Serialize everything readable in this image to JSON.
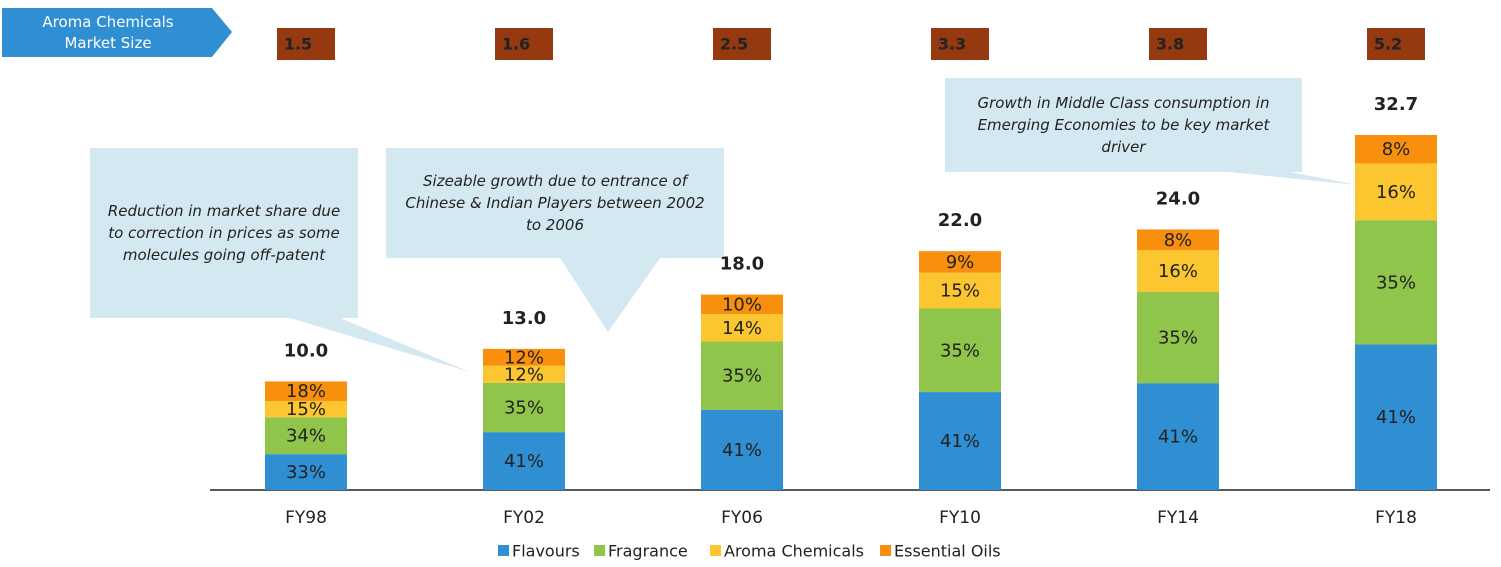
{
  "chart_data": {
    "type": "bar",
    "categories": [
      "FY98",
      "FY02",
      "FY06",
      "FY10",
      "FY14",
      "FY18"
    ],
    "totals": {
      "values": [
        10.0,
        13.0,
        18.0,
        22.0,
        24.0,
        32.7
      ],
      "value_labels": [
        "10.0",
        "13.0",
        "18.0",
        "22.0",
        "24.0",
        "32.7"
      ]
    },
    "series": [
      {
        "name": "Flavours",
        "color": "#2f8fd2",
        "values": [
          33,
          41,
          41,
          41,
          41,
          41
        ],
        "value_labels": [
          "33%",
          "41%",
          "41%",
          "41%",
          "41%",
          "41%"
        ]
      },
      {
        "name": "Fragrance",
        "color": "#8fc54a",
        "values": [
          34,
          35,
          35,
          35,
          35,
          35
        ],
        "value_labels": [
          "34%",
          "35%",
          "35%",
          "35%",
          "35%",
          "35%"
        ]
      },
      {
        "name": "Aroma Chemicals",
        "color": "#fcc630",
        "values": [
          15,
          12,
          14,
          15,
          16,
          16
        ],
        "value_labels": [
          "15%",
          "12%",
          "14%",
          "15%",
          "16%",
          "16%"
        ]
      },
      {
        "name": "Essential Oils",
        "color": "#f8900e",
        "values": [
          18,
          12,
          10,
          9,
          8,
          8
        ],
        "value_labels": [
          "18%",
          "12%",
          "10%",
          "9%",
          "8%",
          "8%"
        ]
      }
    ],
    "market_size": {
      "label": "Aroma Chemicals Market Size",
      "values": [
        1.5,
        1.6,
        2.5,
        3.3,
        3.8,
        5.2
      ]
    },
    "annotations": [
      "Reduction in market share due to correction in prices as some molecules going off-patent",
      "Sizeable growth due to entrance of Chinese & Indian Players between 2002 to 2006",
      "Growth in Middle Class consumption in Emerging Economies to be key market driver"
    ]
  }
}
